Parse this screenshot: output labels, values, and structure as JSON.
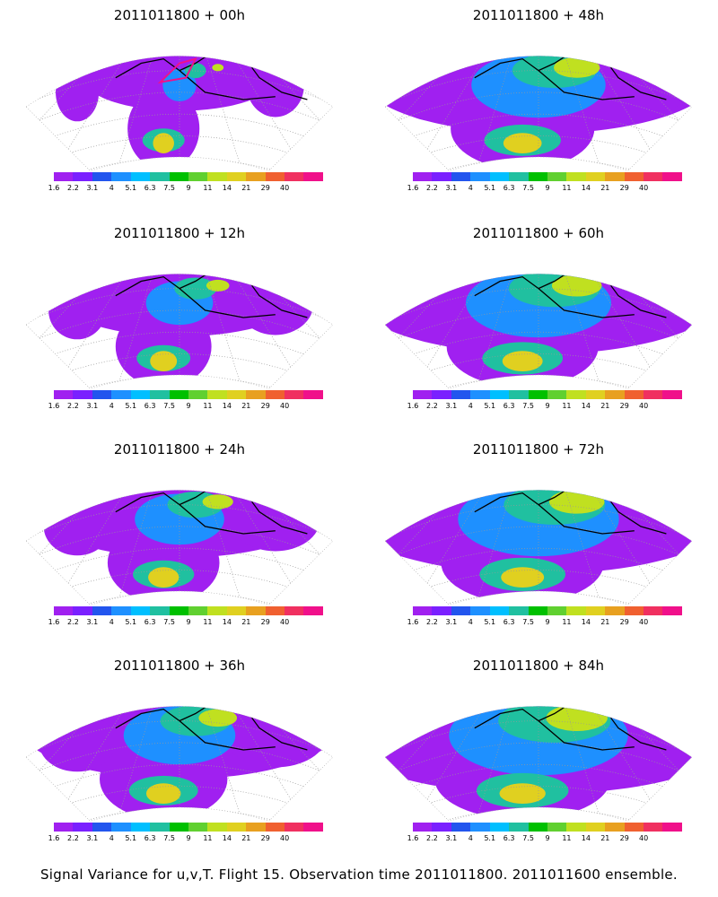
{
  "panels": [
    {
      "title": "2011011800 + 00h",
      "intensity": 0.15,
      "box": true
    },
    {
      "title": "2011011800 + 48h",
      "intensity": 0.6
    },
    {
      "title": "2011011800 + 12h",
      "intensity": 0.3
    },
    {
      "title": "2011011800 + 60h",
      "intensity": 0.65
    },
    {
      "title": "2011011800 + 24h",
      "intensity": 0.4
    },
    {
      "title": "2011011800 + 72h",
      "intensity": 0.72
    },
    {
      "title": "2011011800 + 36h",
      "intensity": 0.5
    },
    {
      "title": "2011011800 + 84h",
      "intensity": 0.8
    }
  ],
  "colorbar": {
    "labels": [
      "1.6",
      "2.2",
      "3.1",
      "4",
      "5.1",
      "6.3",
      "7.5",
      "9",
      "11",
      "14",
      "21",
      "29",
      "40"
    ],
    "colors": [
      "#a020f0",
      "#7a20ff",
      "#2255ee",
      "#1e90ff",
      "#00bfff",
      "#20c0a0",
      "#00c000",
      "#60d030",
      "#c0e020",
      "#e0d020",
      "#e8a020",
      "#f06030",
      "#f03060",
      "#f0108a"
    ]
  },
  "footer": "Signal Variance for u,v,T. Flight 15. Observation time 2011011800. 2011011600 ensemble."
}
